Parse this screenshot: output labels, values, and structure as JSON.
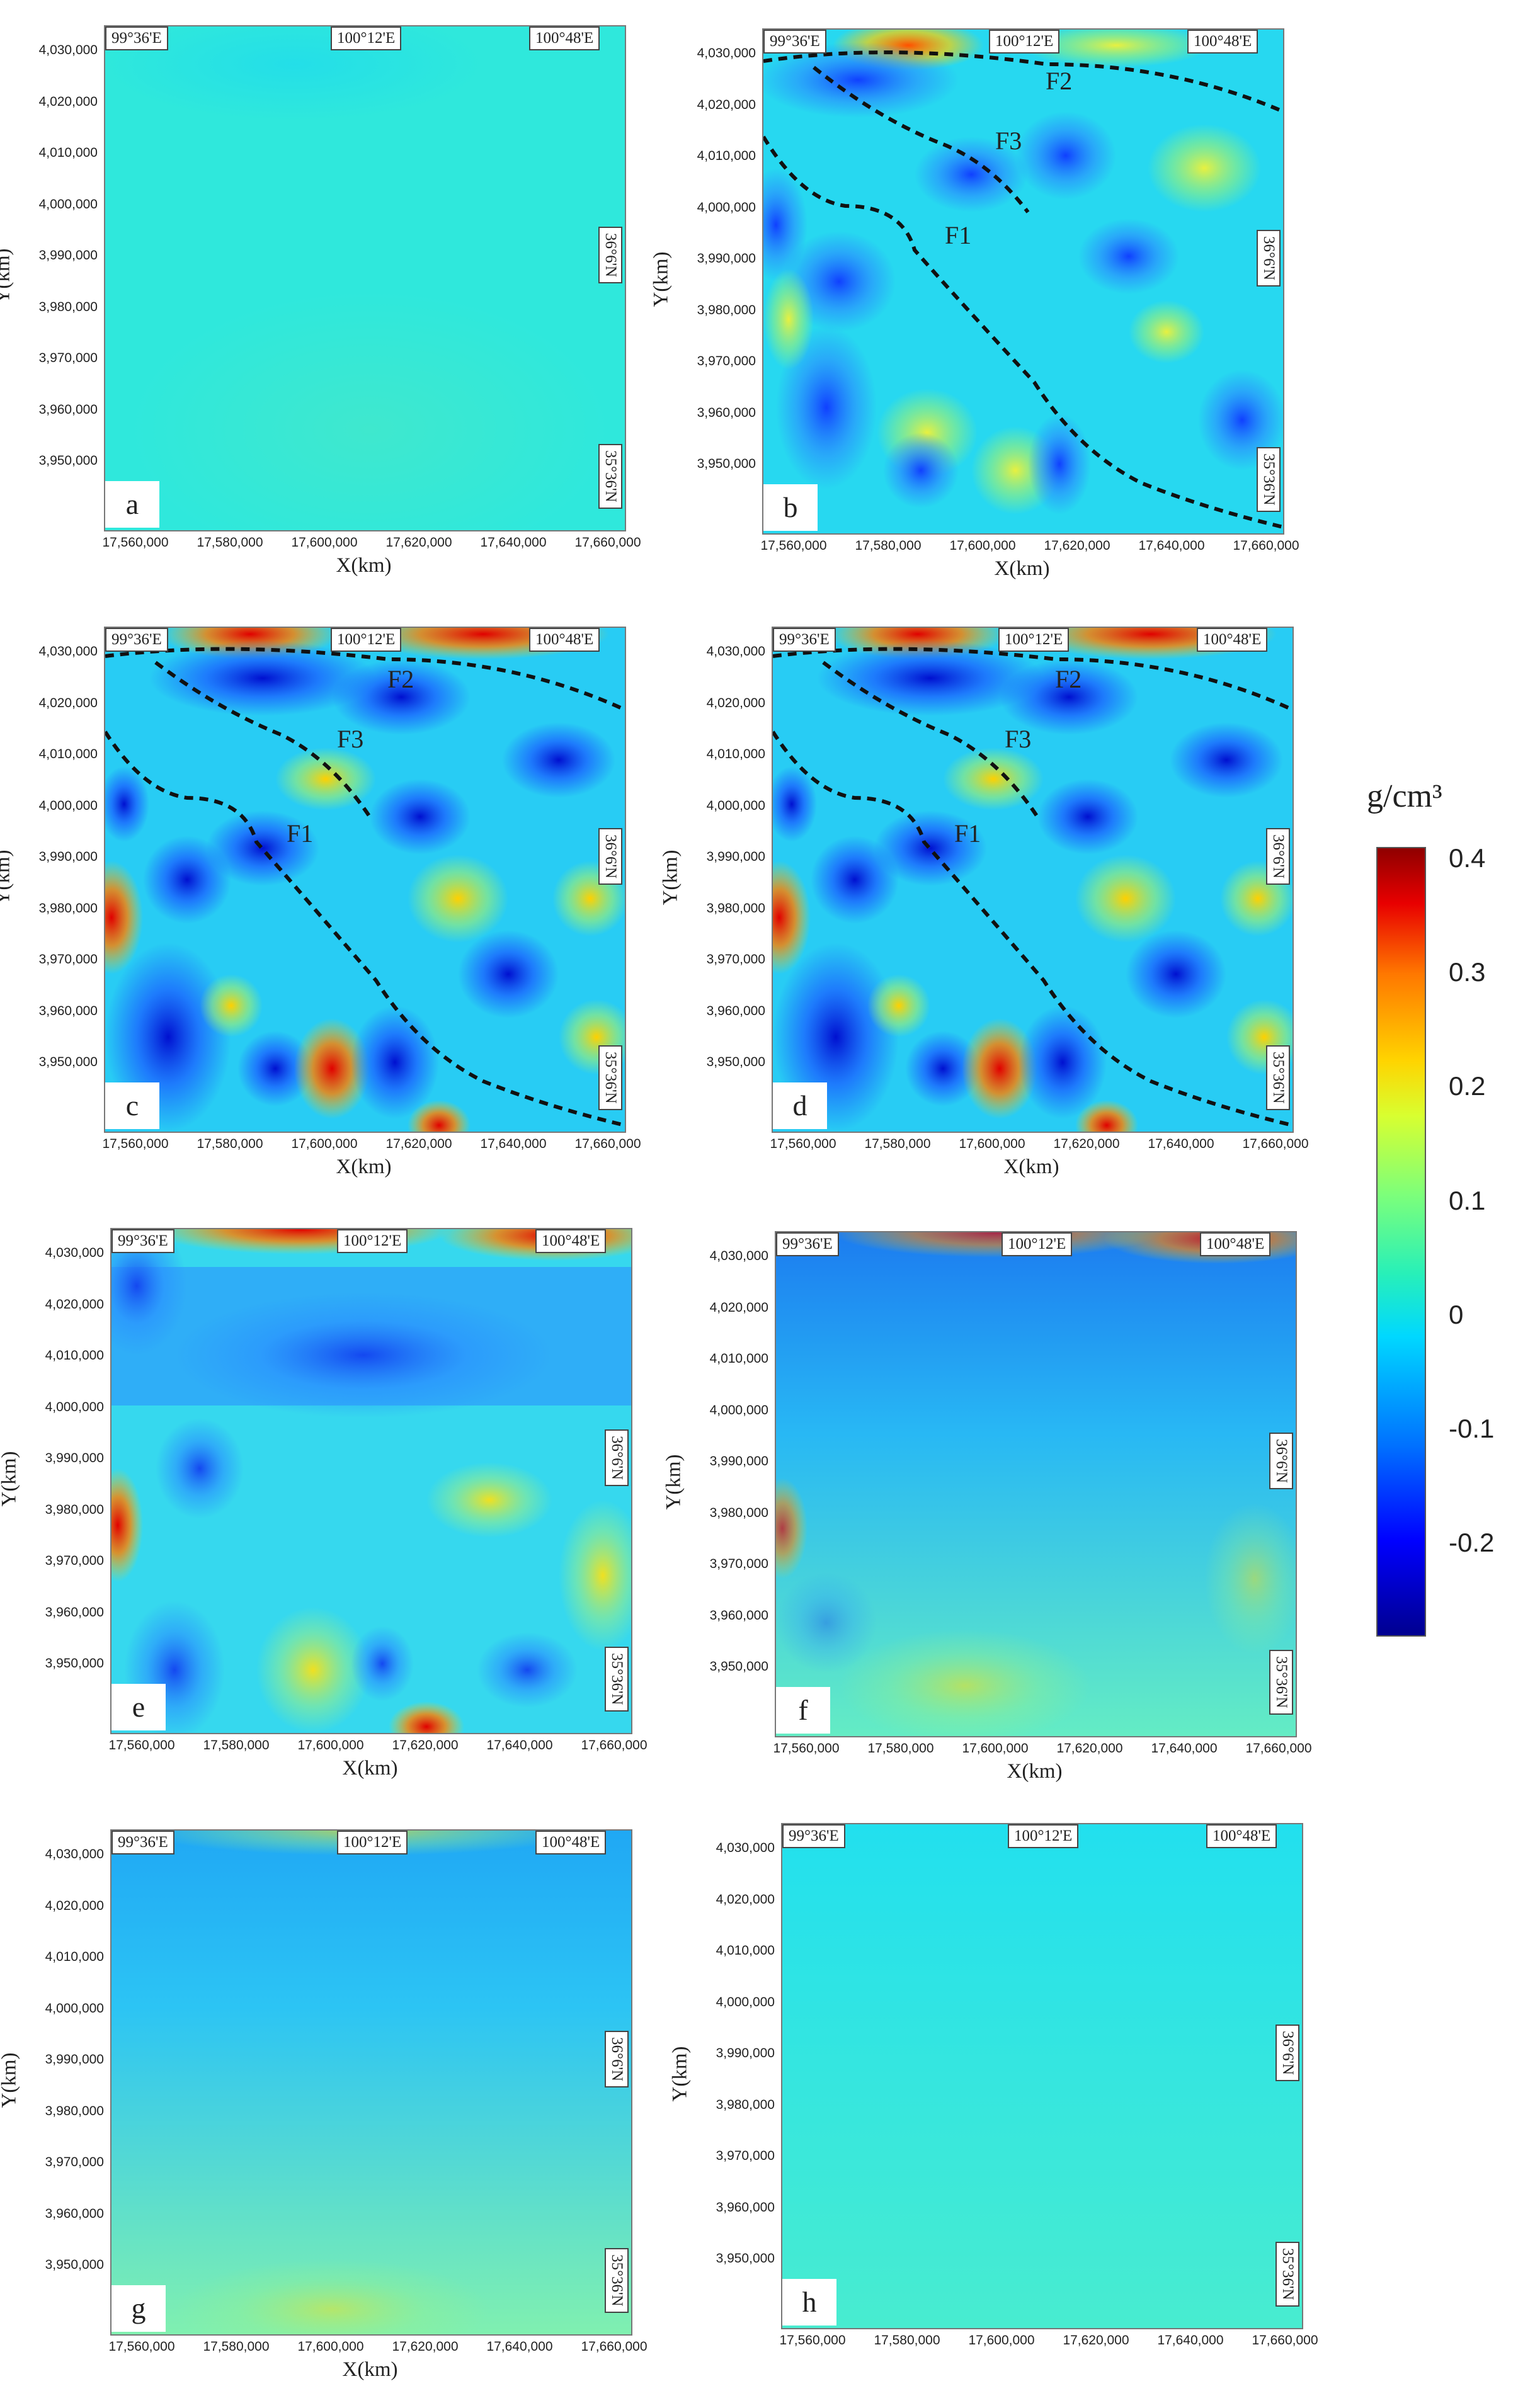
{
  "colorbar": {
    "title": "g/cm³",
    "ticks": [
      "0.4",
      "0.3",
      "0.2",
      "0.1",
      "0",
      "-0.1",
      "-0.2"
    ],
    "range": [
      -0.28,
      0.41
    ],
    "colors": [
      "#00008f",
      "#0000ff",
      "#00d8ff",
      "#7dff7a",
      "#ffd400",
      "#ff7800",
      "#8f0000"
    ]
  },
  "axes": {
    "xlabel": "X(km)",
    "ylabel": "Y(km)",
    "xticks": [
      "17,560,000",
      "17,580,000",
      "17,600,000",
      "17,620,000",
      "17,640,000",
      "17,660,000"
    ],
    "yticks": [
      "4,030,000",
      "4,020,000",
      "4,010,000",
      "4,000,000",
      "3,990,000",
      "3,980,000",
      "3,970,000",
      "3,960,000",
      "3,950,000"
    ]
  },
  "coords": {
    "lon": [
      "99°36'E",
      "100°12'E",
      "100°48'E"
    ],
    "lat": [
      "36°6'N",
      "35°36'N"
    ]
  },
  "faults": [
    "F1",
    "F2",
    "F3"
  ],
  "panels": [
    {
      "letter": "a",
      "background_color": "#2fe8dc",
      "anomalies": []
    },
    {
      "letter": "b",
      "background_color": "#27d8f0",
      "anomalies": []
    },
    {
      "letter": "c",
      "background_color": "#28ccf4",
      "anomalies": []
    },
    {
      "letter": "d",
      "background_color": "#28ccf4",
      "anomalies": []
    },
    {
      "letter": "e",
      "background_color": "#36d8ee",
      "anomalies": []
    },
    {
      "letter": "f",
      "background_color": "#44dde0",
      "anomalies": []
    },
    {
      "letter": "g",
      "background_color": "#46e0dc",
      "anomalies": []
    },
    {
      "letter": "h",
      "background_color": "#38eadb",
      "anomalies": []
    }
  ]
}
